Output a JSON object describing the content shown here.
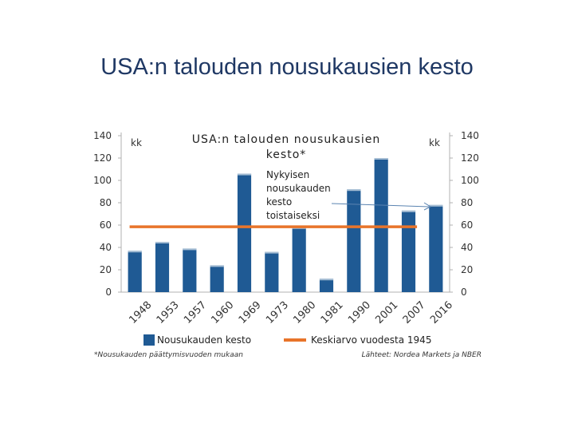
{
  "slide": {
    "title": "USA:n talouden nousukausien kesto"
  },
  "chart_data": {
    "type": "bar",
    "title_line1": "USA:n talouden nousukausien",
    "title_line2": "kesto*",
    "unit_left": "kk",
    "unit_right": "kk",
    "categories": [
      "1948",
      "1953",
      "1957",
      "1960",
      "1969",
      "1973",
      "1980",
      "1981",
      "1990",
      "2001",
      "2007",
      "2016"
    ],
    "series": [
      {
        "name": "Nousukauden kesto",
        "type": "bar",
        "color": "#1f5a94",
        "values": [
          37,
          45,
          39,
          24,
          106,
          36,
          58,
          12,
          92,
          120,
          73,
          78
        ]
      },
      {
        "name": "Keskiarvo vuodesta 1945",
        "type": "line",
        "color": "#e8742a",
        "value": 58.5
      }
    ],
    "ylim": [
      0,
      140
    ],
    "yticks": [
      0,
      20,
      40,
      60,
      80,
      100,
      120,
      140
    ],
    "annotation_lines": [
      "Nykyisen",
      "nousukauden",
      "kesto",
      "toistaiseksi"
    ],
    "footnote": "*Nousukauden päättymisvuoden mukaan",
    "source": "Lähteet: Nordea Markets ja NBER"
  }
}
